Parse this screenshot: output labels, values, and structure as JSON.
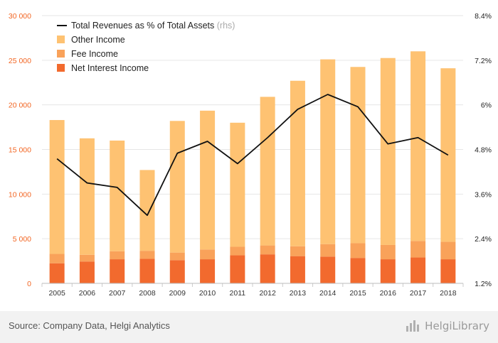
{
  "chart_data": {
    "type": "bar",
    "stacked": true,
    "categories": [
      "2005",
      "2006",
      "2007",
      "2008",
      "2009",
      "2010",
      "2011",
      "2012",
      "2013",
      "2014",
      "2015",
      "2016",
      "2017",
      "2018"
    ],
    "series": [
      {
        "name": "Net Interest Income",
        "color": "#f26a2e",
        "values": [
          2250,
          2450,
          2700,
          2750,
          2600,
          2700,
          3150,
          3250,
          3050,
          3000,
          2850,
          2700,
          2900,
          2700
        ]
      },
      {
        "name": "Fee Income",
        "color": "#f9a25a",
        "values": [
          1050,
          750,
          900,
          900,
          850,
          1100,
          950,
          1000,
          1100,
          1400,
          1650,
          1600,
          1850,
          1950
        ]
      },
      {
        "name": "Other Income",
        "color": "#fec272",
        "values": [
          15000,
          13050,
          12400,
          9050,
          14750,
          15550,
          13900,
          16650,
          18550,
          20700,
          19750,
          20950,
          21250,
          19450
        ]
      }
    ],
    "line_series": {
      "name": "Total Revenues as % of Total Assets",
      "note": "(rhs)",
      "color": "#111111",
      "values": [
        4.55,
        3.9,
        3.78,
        3.03,
        4.7,
        5.02,
        4.42,
        5.12,
        5.88,
        6.28,
        5.95,
        4.95,
        5.12,
        4.65
      ]
    },
    "y_left": {
      "min": 0,
      "max": 30000,
      "step": 5000,
      "tick_labels": [
        "0",
        "5 000",
        "10 000",
        "15 000",
        "20 000",
        "25 000",
        "30 000"
      ]
    },
    "y_right": {
      "min": 1.2,
      "max": 8.4,
      "step": 1.2,
      "tick_labels": [
        "1.2%",
        "2.4%",
        "3.6%",
        "4.8%",
        "6%",
        "7.2%",
        "8.4%"
      ]
    },
    "grid": true,
    "legend_position": "top-left"
  },
  "footer": {
    "source": "Source: Company Data, Helgi Analytics",
    "brand": "HelgiLibrary"
  }
}
